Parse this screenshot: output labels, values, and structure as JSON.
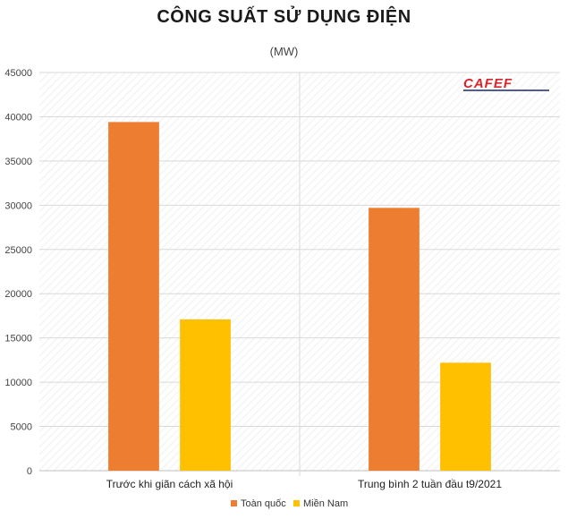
{
  "chart_data": {
    "type": "bar",
    "title": "CÔNG SUẤT SỬ DỤNG ĐIỆN",
    "subtitle": "(MW)",
    "categories": [
      "Trước khi giãn cách xã hội",
      "Trung bình 2 tuần đầu t9/2021"
    ],
    "series": [
      {
        "name": "Toàn quốc",
        "values": [
          39400,
          29700
        ],
        "color": "#ED7D31"
      },
      {
        "name": "Miền Nam",
        "values": [
          17100,
          12200
        ],
        "color": "#FFC000"
      }
    ],
    "ylim": [
      0,
      45000
    ],
    "yticks": [
      0,
      5000,
      10000,
      15000,
      20000,
      25000,
      30000,
      35000,
      40000,
      45000
    ],
    "grid": true,
    "legend": "bottom"
  },
  "watermark": {
    "text": "CAFEF",
    "accent_color": "#d9252a",
    "main_color": "#1f2a5a"
  }
}
